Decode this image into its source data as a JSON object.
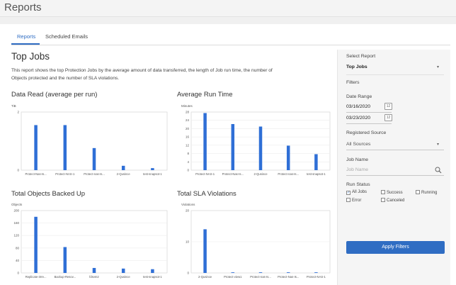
{
  "app": {
    "title": "Reports"
  },
  "tabs": [
    {
      "label": "Reports"
    },
    {
      "label": "Scheduled Emails"
    }
  ],
  "report": {
    "title": "Top Jobs",
    "description": "This report shows the top Protection Jobs by the average amount of data transferred, the length of Job run time, the number of Objects protected and the number of SLA violations."
  },
  "filters": {
    "select_report_label": "Select Report",
    "select_report_value": "Top Jobs",
    "section_title": "Filters",
    "date_range_label": "Date Range",
    "date_from": "03/16/2020",
    "date_to": "03/23/2020",
    "calendar_day": "12",
    "source_label": "Registered Source",
    "source_value": "All Sources",
    "job_name_label": "Job Name",
    "job_name_placeholder": "Job Name",
    "run_status_label": "Run Status",
    "statuses": [
      {
        "label": "All Jobs",
        "checked": true
      },
      {
        "label": "Success",
        "checked": false
      },
      {
        "label": "Running",
        "checked": false
      },
      {
        "label": "Error",
        "checked": false
      },
      {
        "label": "Canceled",
        "checked": false
      }
    ],
    "apply_label": "Apply Filters"
  },
  "chart_data": [
    {
      "type": "bar",
      "title": "Data Read (average per run)",
      "unit_label": "TiB",
      "categories": [
        "Protect-Nas-Is...",
        "Protect-NAS-1",
        "Protect-nas-Is...",
        "2-Qusince",
        "test-snapsot-1"
      ],
      "values": [
        1.55,
        1.55,
        0.76,
        0.15,
        0.07
      ],
      "ylim": [
        0,
        2
      ],
      "yticks": [
        0,
        2
      ],
      "color": "#2f6fd6"
    },
    {
      "type": "bar",
      "title": "Average Run Time",
      "unit_label": "Minutes",
      "categories": [
        "Protect-NAS-1",
        "Protect-Nas-Is...",
        "2-Qusince",
        "Protect-nas-Is...",
        "test-snapsot-1"
      ],
      "values": [
        27.5,
        22.2,
        21,
        11.8,
        7.7
      ],
      "ylim": [
        0,
        28
      ],
      "yticks": [
        0,
        4,
        8,
        12,
        16,
        20,
        24,
        28
      ],
      "color": "#2f6fd6"
    },
    {
      "type": "bar",
      "title": "Total Objects Backed Up",
      "unit_label": "Objects",
      "categories": [
        "Replicate-3rre...",
        "Backup-Resov...",
        "fdsvm2",
        "2-Qusince",
        "test-snapsot-1"
      ],
      "values": [
        180,
        83,
        16,
        14,
        12
      ],
      "ylim": [
        0,
        200
      ],
      "yticks": [
        0,
        40,
        80,
        120,
        160,
        200
      ],
      "color": "#2f6fd6"
    },
    {
      "type": "bar",
      "title": "Total SLA Violations",
      "unit_label": "Violations",
      "categories": [
        "2-Qusince",
        "Protect-view1",
        "Protect-nas-Is...",
        "Protect-Nas-Is...",
        "Protect-NAS-1"
      ],
      "values": [
        14,
        0.2,
        0.2,
        0.2,
        0.2
      ],
      "ylim": [
        0,
        20
      ],
      "yticks": [
        0,
        10,
        20
      ],
      "color": "#2f6fd6"
    }
  ]
}
